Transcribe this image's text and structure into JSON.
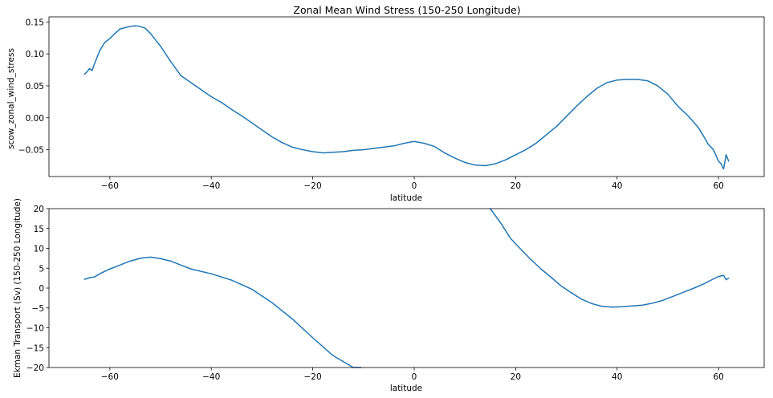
{
  "chart_data": [
    {
      "type": "line",
      "title": "Zonal Mean Wind Stress (150-250 Longitude)",
      "xlabel": "latitude",
      "ylabel": "scow_zonal_wind_stress",
      "xlim": [
        -72,
        69
      ],
      "ylim": [
        -0.092,
        0.158
      ],
      "xticks": [
        -60,
        -40,
        -20,
        0,
        20,
        40,
        60
      ],
      "xtick_labels": [
        "−60",
        "−40",
        "−20",
        "0",
        "20",
        "40",
        "60"
      ],
      "yticks": [
        -0.05,
        0.0,
        0.05,
        0.1,
        0.15
      ],
      "ytick_labels": [
        "−0.05",
        "0.00",
        "0.05",
        "0.10",
        "0.15"
      ],
      "grid": false,
      "series": [
        {
          "color": "#1f77b4",
          "x": [
            -65,
            -64.5,
            -64,
            -63.5,
            -63,
            -62,
            -61,
            -60,
            -59,
            -58,
            -57,
            -56,
            -55,
            -54,
            -53,
            -52,
            -51,
            -50,
            -48,
            -46,
            -44,
            -42,
            -40,
            -38,
            -36,
            -34,
            -32,
            -30,
            -28,
            -26,
            -24,
            -22,
            -20,
            -18,
            -16,
            -14,
            -12,
            -10,
            -8,
            -6,
            -4,
            -2,
            0,
            2,
            4,
            6,
            8,
            10,
            12,
            14,
            16,
            18,
            20,
            22,
            24,
            26,
            28,
            30,
            32,
            34,
            36,
            38,
            40,
            42,
            44,
            46,
            48,
            50,
            52,
            54,
            56,
            57,
            58,
            59,
            60,
            60.5,
            61,
            61.5,
            62
          ],
          "y": [
            0.068,
            0.072,
            0.077,
            0.074,
            0.085,
            0.105,
            0.118,
            0.124,
            0.132,
            0.139,
            0.141,
            0.143,
            0.144,
            0.143,
            0.14,
            0.132,
            0.122,
            0.112,
            0.088,
            0.066,
            0.055,
            0.044,
            0.033,
            0.024,
            0.013,
            0.003,
            -0.008,
            -0.019,
            -0.03,
            -0.039,
            -0.046,
            -0.05,
            -0.053,
            -0.055,
            -0.054,
            -0.053,
            -0.051,
            -0.05,
            -0.048,
            -0.046,
            -0.044,
            -0.04,
            -0.037,
            -0.04,
            -0.045,
            -0.055,
            -0.063,
            -0.07,
            -0.074,
            -0.075,
            -0.072,
            -0.066,
            -0.058,
            -0.05,
            -0.04,
            -0.027,
            -0.014,
            0.002,
            0.018,
            0.033,
            0.046,
            0.055,
            0.059,
            0.06,
            0.06,
            0.058,
            0.05,
            0.037,
            0.018,
            0.003,
            -0.015,
            -0.028,
            -0.042,
            -0.05,
            -0.068,
            -0.072,
            -0.08,
            -0.058,
            -0.068
          ]
        }
      ]
    },
    {
      "type": "line",
      "title": "",
      "xlabel": "latitude",
      "ylabel": "Ekman Transport (Sv) (150-250 Longitude)",
      "xlim": [
        -72,
        69
      ],
      "ylim": [
        -20,
        20
      ],
      "xticks": [
        -60,
        -40,
        -20,
        0,
        20,
        40,
        60
      ],
      "xtick_labels": [
        "−60",
        "−40",
        "−20",
        "0",
        "20",
        "40",
        "60"
      ],
      "yticks": [
        -20,
        -15,
        -10,
        -5,
        0,
        5,
        10,
        15,
        20
      ],
      "ytick_labels": [
        "−20",
        "−15",
        "−10",
        "−5",
        "0",
        "5",
        "10",
        "15",
        "20"
      ],
      "grid": false,
      "series": [
        {
          "color": "#1f77b4",
          "segments": [
            {
              "x": [
                -65,
                -64,
                -63,
                -62,
                -60,
                -58,
                -56,
                -54,
                -52,
                -50,
                -48,
                -46,
                -44,
                -40,
                -36,
                -32,
                -28,
                -24,
                -20,
                -16,
                -12,
                -10.5
              ],
              "y": [
                2.2,
                2.6,
                2.8,
                3.6,
                4.8,
                5.8,
                6.8,
                7.5,
                7.8,
                7.4,
                6.8,
                5.8,
                4.8,
                3.6,
                2.0,
                -0.3,
                -3.7,
                -7.8,
                -12.5,
                -17.0,
                -20.0,
                -20.0
              ]
            },
            {
              "x": [
                15,
                17,
                19,
                21,
                23,
                25,
                27,
                29,
                31,
                33,
                35,
                37,
                39,
                41,
                43,
                45,
                47,
                49,
                51,
                53,
                55,
                57,
                59,
                60,
                61,
                61.5,
                62
              ],
              "y": [
                20,
                16.5,
                12.5,
                9.8,
                7.2,
                4.8,
                2.7,
                0.5,
                -1.2,
                -2.8,
                -3.9,
                -4.6,
                -4.8,
                -4.7,
                -4.5,
                -4.3,
                -3.8,
                -3.1,
                -2.1,
                -1.1,
                -0.1,
                1.0,
                2.3,
                2.9,
                3.2,
                2.1,
                2.5
              ]
            }
          ]
        }
      ]
    }
  ]
}
